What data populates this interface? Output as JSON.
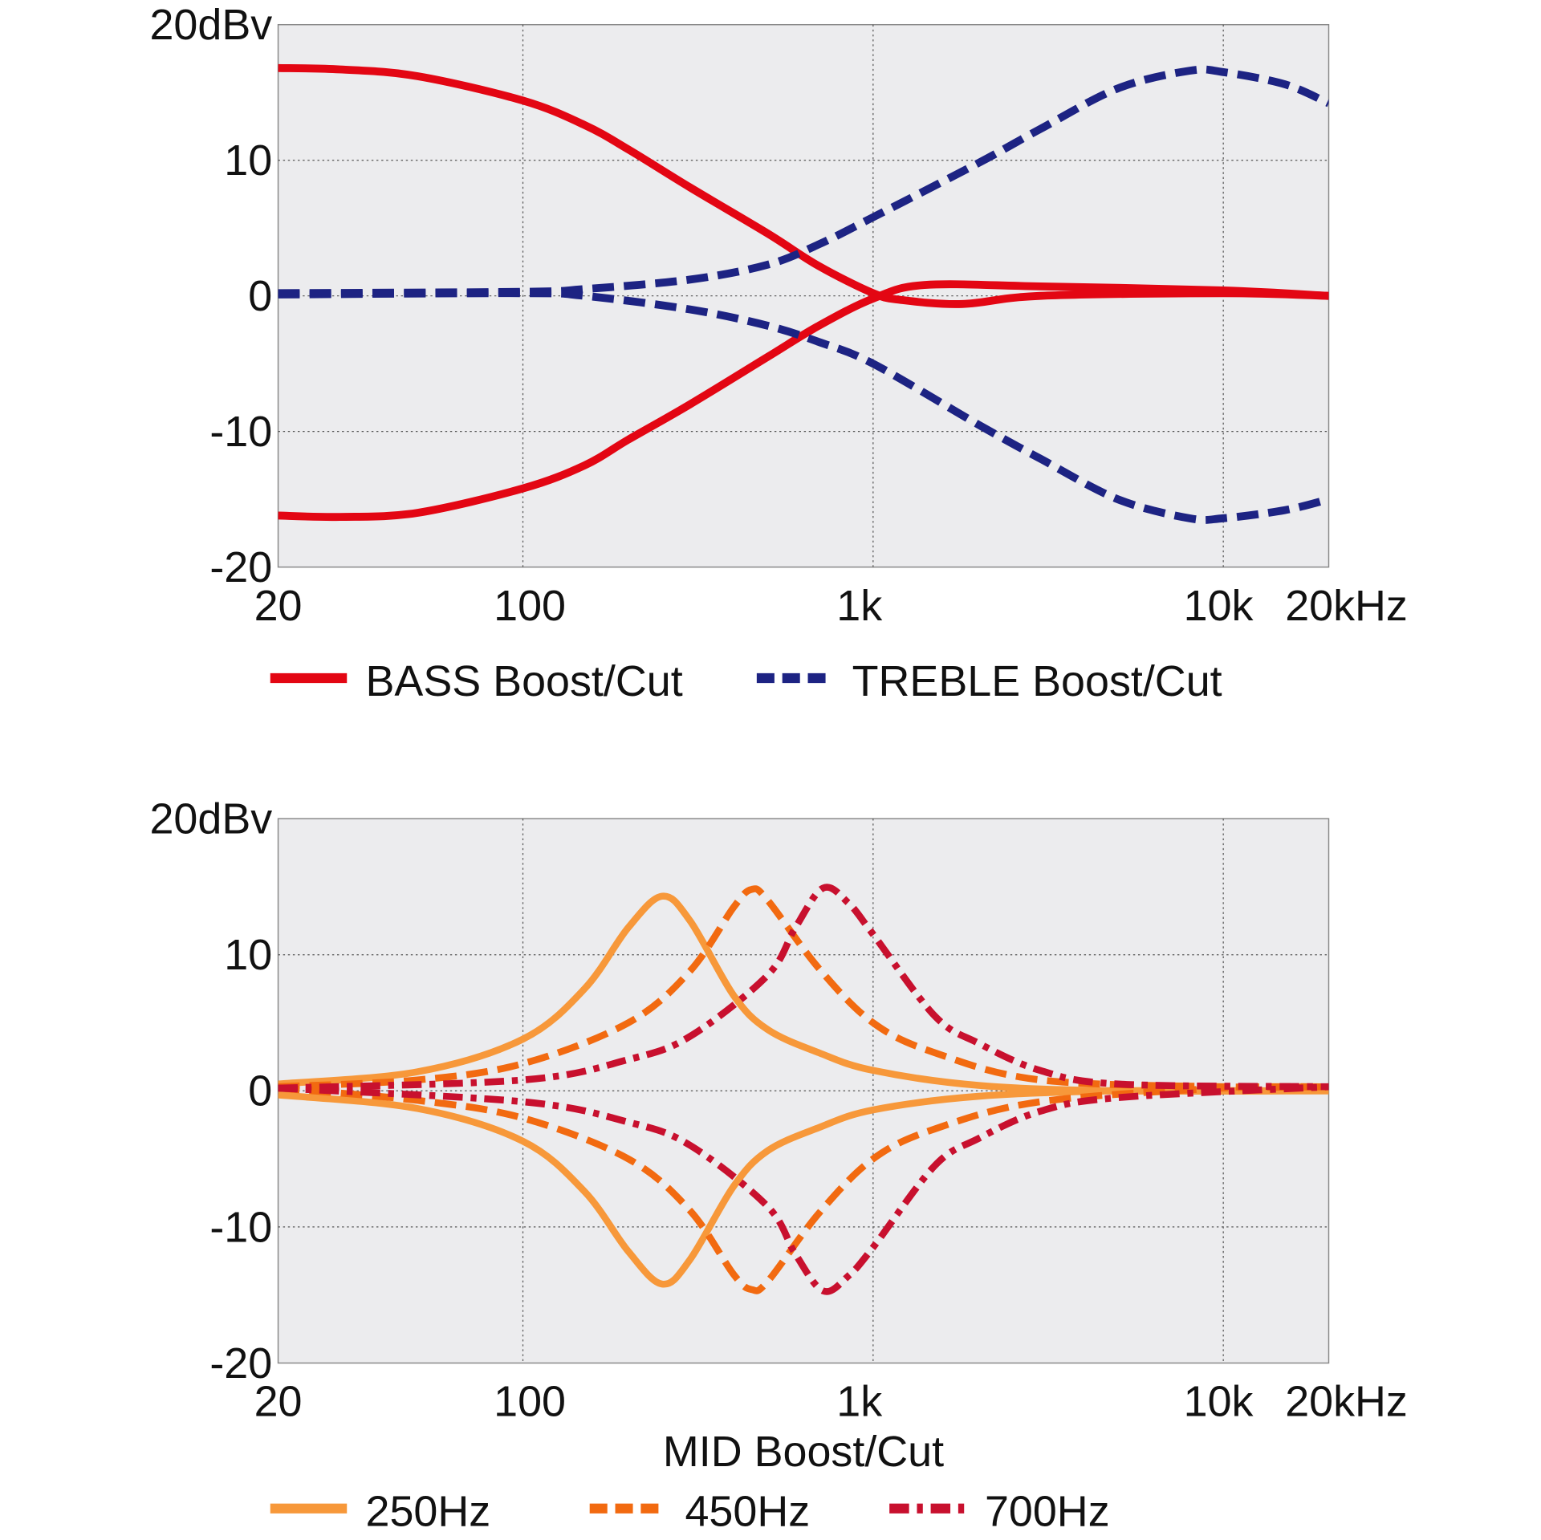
{
  "chart_data": [
    {
      "type": "line",
      "xscale": "log",
      "xlim": [
        20,
        20000
      ],
      "ylim": [
        -20,
        20
      ],
      "grid": true,
      "background": "#ececee",
      "xticks": [
        {
          "v": 20,
          "label": "20"
        },
        {
          "v": 100,
          "label": "100"
        },
        {
          "v": 1000,
          "label": "1k"
        },
        {
          "v": 10000,
          "label": "10k"
        },
        {
          "v": 20000,
          "label": "20kHz"
        }
      ],
      "yticks": [
        {
          "v": 20,
          "label": "20dBv"
        },
        {
          "v": 10,
          "label": "10"
        },
        {
          "v": 0,
          "label": "0"
        },
        {
          "v": -10,
          "label": "-10"
        },
        {
          "v": -20,
          "label": "-20"
        }
      ],
      "xlabel": "",
      "legend_position": "bottom",
      "legend": [
        {
          "name": "BASS Boost/Cut",
          "color": "#e30613",
          "dash": "solid"
        },
        {
          "name": "TREBLE Boost/Cut",
          "color": "#1d2383",
          "dash": "dashed"
        }
      ],
      "series": [
        {
          "legend": 0,
          "x": [
            20,
            30,
            50,
            100,
            150,
            200,
            300,
            500,
            700,
            1000,
            1200,
            1800,
            3000,
            10000,
            20000
          ],
          "y": [
            16.8,
            16.7,
            16.2,
            14.4,
            12.6,
            10.8,
            8.0,
            4.6,
            2.2,
            0.2,
            -0.3,
            -0.6,
            0,
            0.2,
            0
          ]
        },
        {
          "legend": 0,
          "x": [
            20,
            30,
            50,
            100,
            150,
            200,
            300,
            500,
            700,
            1000,
            1400,
            3000,
            10000,
            20000
          ],
          "y": [
            -16.2,
            -16.3,
            -16.0,
            -14.2,
            -12.5,
            -10.6,
            -8.0,
            -4.5,
            -2.2,
            -0.2,
            0.8,
            0.7,
            0.4,
            0
          ]
        },
        {
          "legend": 1,
          "x": [
            20,
            100,
            150,
            300,
            500,
            700,
            1000,
            2000,
            3000,
            5000,
            8000,
            10000,
            15000,
            20000
          ],
          "y": [
            0.2,
            0.3,
            0.5,
            1.2,
            2.3,
            3.8,
            5.8,
            9.8,
            12.3,
            15.3,
            16.6,
            16.5,
            15.6,
            14.2
          ]
        },
        {
          "legend": 1,
          "x": [
            20,
            100,
            150,
            300,
            500,
            700,
            1000,
            2000,
            3000,
            5000,
            8000,
            10000,
            15000,
            20000
          ],
          "y": [
            0.1,
            0.2,
            0,
            -1.0,
            -2.2,
            -3.4,
            -5.0,
            -9.5,
            -12.0,
            -15.0,
            -16.4,
            -16.4,
            -15.8,
            -15.0
          ]
        }
      ]
    },
    {
      "type": "line",
      "xscale": "log",
      "xlim": [
        20,
        20000
      ],
      "ylim": [
        -20,
        20
      ],
      "grid": true,
      "background": "#ececee",
      "xticks": [
        {
          "v": 20,
          "label": "20"
        },
        {
          "v": 100,
          "label": "100"
        },
        {
          "v": 1000,
          "label": "1k"
        },
        {
          "v": 10000,
          "label": "10k"
        },
        {
          "v": 20000,
          "label": "20kHz"
        }
      ],
      "yticks": [
        {
          "v": 20,
          "label": "20dBv"
        },
        {
          "v": 10,
          "label": "10"
        },
        {
          "v": 0,
          "label": "0"
        },
        {
          "v": -10,
          "label": "-10"
        },
        {
          "v": -20,
          "label": "-20"
        }
      ],
      "xlabel": "MID Boost/Cut",
      "legend_position": "bottom",
      "legend": [
        {
          "name": "250Hz",
          "color": "#f7983a",
          "dash": "solid"
        },
        {
          "name": "450Hz",
          "color": "#f26a10",
          "dash": "dashed"
        },
        {
          "name": "700Hz",
          "color": "#c8102e",
          "dash": "dashdot"
        }
      ],
      "series": [
        {
          "legend": 0,
          "x": [
            20,
            50,
            100,
            150,
            200,
            250,
            300,
            400,
            500,
            700,
            1000,
            2000,
            5000,
            20000
          ],
          "y": [
            0.5,
            1.4,
            3.8,
            7.5,
            12.0,
            14.3,
            12.5,
            7.0,
            4.5,
            2.8,
            1.5,
            0.4,
            0,
            0
          ]
        },
        {
          "legend": 0,
          "x": [
            20,
            50,
            100,
            150,
            200,
            250,
            300,
            400,
            500,
            700,
            1000,
            2000,
            5000,
            20000
          ],
          "y": [
            -0.3,
            -1.3,
            -3.7,
            -7.4,
            -11.8,
            -14.2,
            -12.4,
            -7.0,
            -4.4,
            -2.7,
            -1.4,
            -0.4,
            0,
            0
          ]
        },
        {
          "legend": 1,
          "x": [
            20,
            50,
            100,
            200,
            300,
            400,
            450,
            500,
            700,
            1000,
            1500,
            3000,
            10000,
            20000
          ],
          "y": [
            0.3,
            0.8,
            2.0,
            5.0,
            8.8,
            13.5,
            14.8,
            14.0,
            9.0,
            5.0,
            2.8,
            0.8,
            0.3,
            0.3
          ]
        },
        {
          "legend": 1,
          "x": [
            20,
            50,
            100,
            200,
            300,
            400,
            450,
            500,
            700,
            1000,
            1500,
            3000,
            10000,
            20000
          ],
          "y": [
            0.2,
            -0.7,
            -2.0,
            -5.0,
            -8.8,
            -13.5,
            -14.6,
            -14.0,
            -9.0,
            -5.0,
            -2.8,
            -0.8,
            0.2,
            0.3
          ]
        },
        {
          "legend": 2,
          "x": [
            20,
            100,
            200,
            300,
            500,
            600,
            720,
            850,
            1000,
            1500,
            2000,
            3000,
            5000,
            20000
          ],
          "y": [
            0.2,
            0.8,
            2.3,
            4.0,
            8.5,
            12.0,
            14.9,
            13.8,
            11.5,
            5.5,
            3.5,
            1.5,
            0.5,
            0.3
          ]
        },
        {
          "legend": 2,
          "x": [
            20,
            100,
            200,
            300,
            500,
            600,
            720,
            850,
            1000,
            1500,
            2000,
            3000,
            5000,
            20000
          ],
          "y": [
            0.2,
            -0.8,
            -2.3,
            -4.0,
            -8.5,
            -12.0,
            -14.7,
            -13.6,
            -11.5,
            -5.5,
            -3.5,
            -1.5,
            -0.5,
            0.3
          ]
        }
      ]
    }
  ]
}
